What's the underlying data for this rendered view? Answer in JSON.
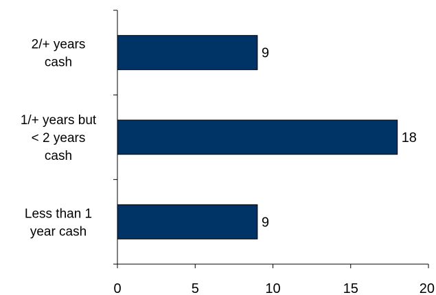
{
  "chart_data": {
    "type": "bar",
    "orientation": "horizontal",
    "categories": [
      [
        "2/+ years",
        "cash"
      ],
      [
        "1/+ years but",
        "< 2 years",
        "cash"
      ],
      [
        "Less than 1",
        "year cash"
      ]
    ],
    "values": [
      9,
      18,
      9
    ],
    "data_labels": [
      "9",
      "18",
      "9"
    ],
    "xlim": [
      0,
      20
    ],
    "x_ticks": [
      "0",
      "5",
      "10",
      "15",
      "20"
    ],
    "title": "",
    "xlabel": "",
    "ylabel": "",
    "grid": false,
    "legend": "none",
    "bar_color": "#003366",
    "bar_edge_color": "#000000"
  }
}
